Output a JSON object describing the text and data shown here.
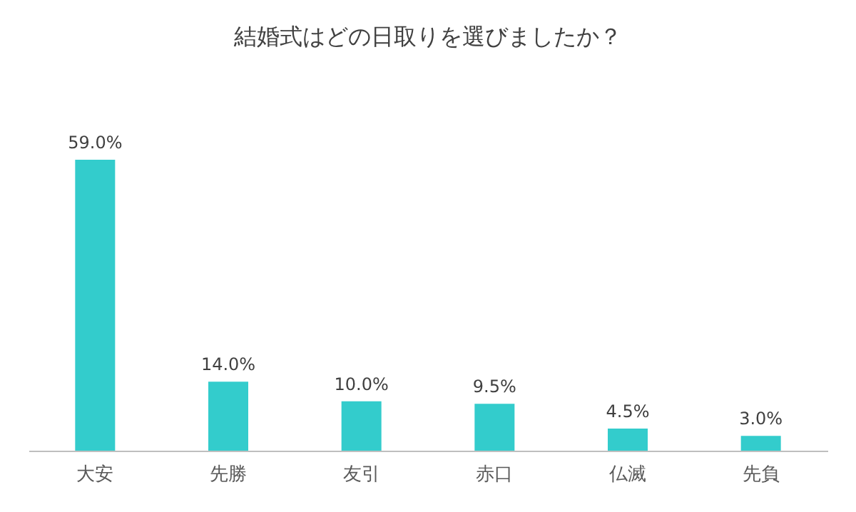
{
  "chart_data": {
    "type": "bar",
    "title": "結婚式はどの日取りを選びましたか？",
    "categories": [
      "大安",
      "先勝",
      "友引",
      "赤口",
      "仏滅",
      "先負"
    ],
    "values": [
      59.0,
      14.0,
      10.0,
      9.5,
      4.5,
      3.0
    ],
    "value_labels": [
      "59.0%",
      "14.0%",
      "10.0%",
      "9.5%",
      "4.5%",
      "3.0%"
    ],
    "color": "#33cccc",
    "tick_labels": "x"
  }
}
